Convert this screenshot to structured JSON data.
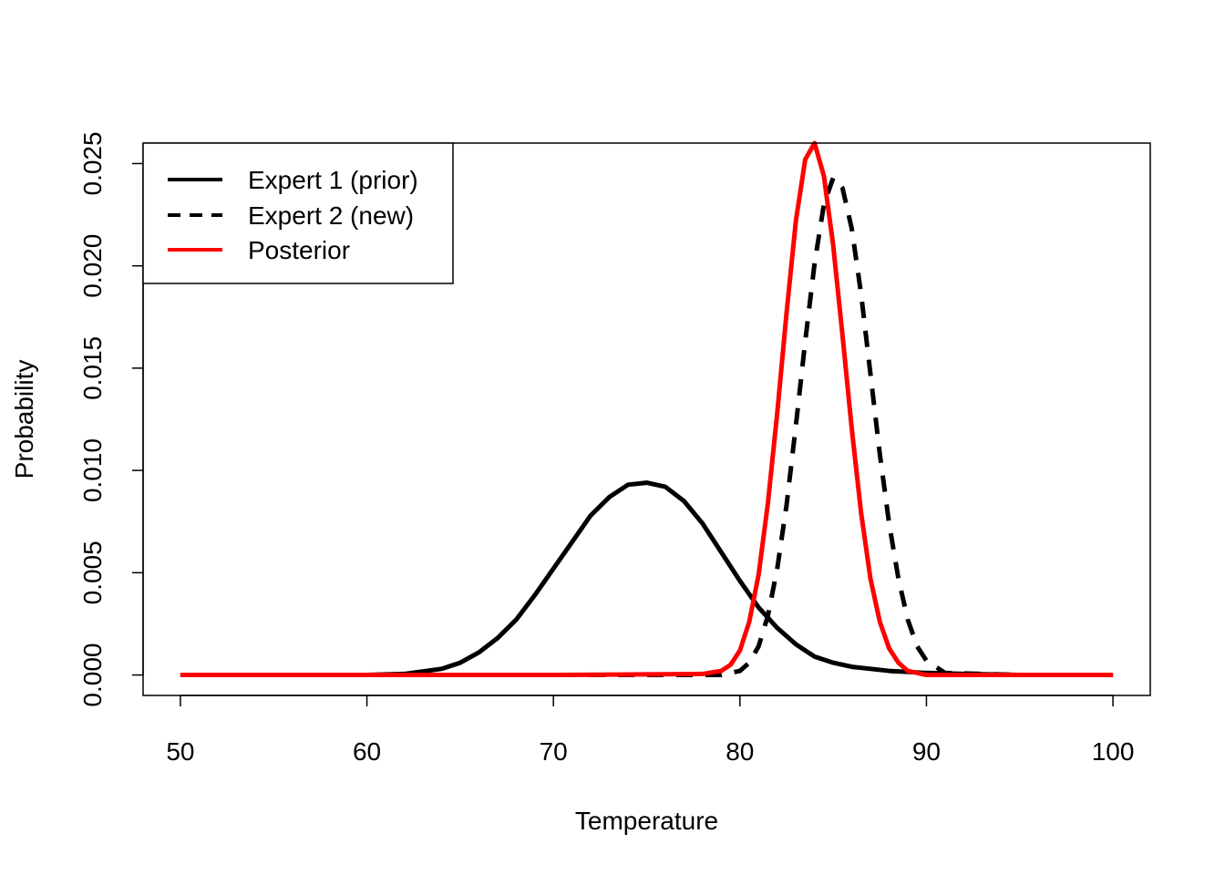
{
  "chart_data": {
    "type": "line",
    "title": "",
    "xlabel": "Temperature",
    "ylabel": "Probability",
    "xlim": [
      48,
      102
    ],
    "ylim": [
      -0.001,
      0.026
    ],
    "grid": false,
    "legend_position": "top-left",
    "x_ticks": [
      50,
      60,
      70,
      80,
      90,
      100
    ],
    "x_tick_labels": [
      "50",
      "60",
      "70",
      "80",
      "90",
      "100"
    ],
    "y_ticks": [
      0.0,
      0.005,
      0.01,
      0.015,
      0.02,
      0.025
    ],
    "y_tick_labels": [
      "0.000",
      "0.005",
      "0.010",
      "0.015",
      "0.020",
      "0.025"
    ],
    "series": [
      {
        "name": "Expert 1 (prior)",
        "color": "#000000",
        "line_style": "solid",
        "x": [
          50,
          55,
          60,
          62,
          64,
          65,
          66,
          67,
          68,
          69,
          70,
          71,
          72,
          73,
          74,
          75,
          76,
          77,
          78,
          79,
          80,
          81,
          82,
          83,
          84,
          85,
          86,
          87,
          88,
          89,
          90,
          92,
          95,
          100
        ],
        "y": [
          0.0,
          0.0,
          0.0,
          5e-05,
          0.0003,
          0.0006,
          0.0011,
          0.0018,
          0.0027,
          0.0039,
          0.0052,
          0.0065,
          0.0078,
          0.0087,
          0.0093,
          0.0094,
          0.0092,
          0.0085,
          0.0074,
          0.006,
          0.0046,
          0.0033,
          0.0023,
          0.0015,
          0.0009,
          0.0006,
          0.0004,
          0.0003,
          0.0002,
          0.00015,
          0.0001,
          5e-05,
          0.0,
          0.0
        ]
      },
      {
        "name": "Expert 2 (new)",
        "color": "#000000",
        "line_style": "dashed",
        "x": [
          50,
          60,
          70,
          78,
          79,
          80,
          80.5,
          81,
          81.5,
          82,
          82.5,
          83,
          83.5,
          84,
          84.5,
          85,
          85.5,
          86,
          86.5,
          87,
          87.5,
          88,
          88.5,
          89,
          89.5,
          90,
          91,
          95,
          100
        ],
        "y": [
          0.0,
          0.0,
          0.0,
          0.0,
          0.0,
          0.0002,
          0.0006,
          0.0014,
          0.0029,
          0.0052,
          0.0083,
          0.0122,
          0.0163,
          0.0201,
          0.023,
          0.0243,
          0.0238,
          0.0218,
          0.0186,
          0.0147,
          0.0108,
          0.0074,
          0.0047,
          0.0027,
          0.0014,
          0.0007,
          0.0001,
          0.0,
          0.0
        ]
      },
      {
        "name": "Posterior",
        "color": "#ff0000",
        "line_style": "solid",
        "x": [
          50,
          60,
          70,
          78,
          79,
          79.5,
          80,
          80.5,
          81,
          81.5,
          82,
          82.5,
          83,
          83.5,
          84,
          84.5,
          85,
          85.5,
          86,
          86.5,
          87,
          87.5,
          88,
          88.5,
          89,
          90,
          95,
          100
        ],
        "y": [
          0.0,
          0.0,
          0.0,
          5e-05,
          0.0002,
          0.0005,
          0.0012,
          0.0026,
          0.0049,
          0.0084,
          0.0128,
          0.0177,
          0.0222,
          0.0252,
          0.026,
          0.0244,
          0.021,
          0.0166,
          0.012,
          0.0079,
          0.0047,
          0.0026,
          0.0013,
          0.0006,
          0.0002,
          0.0,
          0.0,
          0.0
        ]
      }
    ]
  }
}
